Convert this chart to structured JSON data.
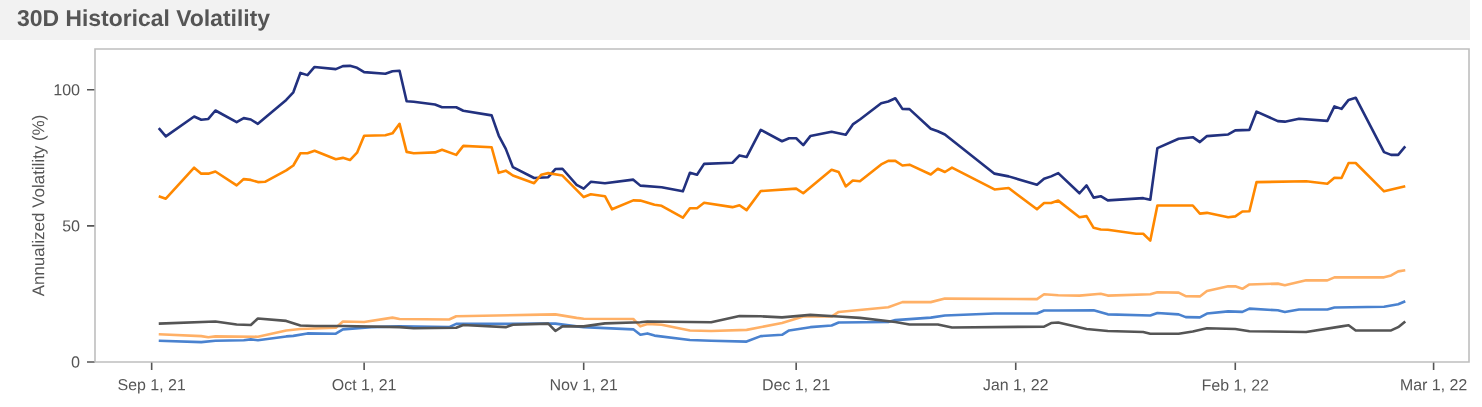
{
  "chart_data": {
    "type": "line",
    "title": "30D Historical Volatility",
    "ylabel": "Annualized Volatility (%)",
    "xlim": [
      "2021-08-24",
      "2022-03-06"
    ],
    "ylim": [
      0,
      115
    ],
    "yticks": [
      0,
      50,
      100
    ],
    "xticks": [
      {
        "value": "2021-09-01",
        "label": "Sep 1, 21"
      },
      {
        "value": "2021-10-01",
        "label": "Oct 1, 21"
      },
      {
        "value": "2021-11-01",
        "label": "Nov 1, 21"
      },
      {
        "value": "2021-12-01",
        "label": "Dec 1, 21"
      },
      {
        "value": "2022-01-01",
        "label": "Jan 1, 22"
      },
      {
        "value": "2022-02-01",
        "label": "Feb 1, 22"
      },
      {
        "value": "2022-03-01",
        "label": "Mar 1, 22"
      }
    ],
    "line_style": "solid",
    "series": [
      {
        "color": "#22317f",
        "x": [
          "2021-09-02",
          "2021-09-03",
          "2021-09-07",
          "2021-09-08",
          "2021-09-09",
          "2021-09-10",
          "2021-09-13",
          "2021-09-14",
          "2021-09-15",
          "2021-09-16",
          "2021-09-20",
          "2021-09-21",
          "2021-09-22",
          "2021-09-23",
          "2021-09-24",
          "2021-09-27",
          "2021-09-28",
          "2021-09-29",
          "2021-09-30",
          "2021-10-01",
          "2021-10-04",
          "2021-10-05",
          "2021-10-06",
          "2021-10-07",
          "2021-10-08",
          "2021-10-11",
          "2021-10-12",
          "2021-10-14",
          "2021-10-15",
          "2021-10-19",
          "2021-10-20",
          "2021-10-21",
          "2021-10-22",
          "2021-10-25",
          "2021-10-27",
          "2021-10-28",
          "2021-10-29",
          "2021-10-31",
          "2021-11-01",
          "2021-11-02",
          "2021-11-04",
          "2021-11-08",
          "2021-11-09",
          "2021-11-12",
          "2021-11-15",
          "2021-11-16",
          "2021-11-17",
          "2021-11-18",
          "2021-11-22",
          "2021-11-23",
          "2021-11-24",
          "2021-11-26",
          "2021-11-29",
          "2021-11-30",
          "2021-12-01",
          "2021-12-02",
          "2021-12-03",
          "2021-12-06",
          "2021-12-08",
          "2021-12-09",
          "2021-12-10",
          "2021-12-13",
          "2021-12-14",
          "2021-12-15",
          "2021-12-16",
          "2021-12-17",
          "2021-12-20",
          "2021-12-21",
          "2021-12-22",
          "2021-12-29",
          "2021-12-31",
          "2022-01-04",
          "2022-01-05",
          "2022-01-06",
          "2022-01-07",
          "2022-01-10",
          "2022-01-11",
          "2022-01-12",
          "2022-01-13",
          "2022-01-14",
          "2022-01-19",
          "2022-01-20",
          "2022-01-21",
          "2022-01-24",
          "2022-01-26",
          "2022-01-27",
          "2022-01-28",
          "2022-01-31",
          "2022-02-01",
          "2022-02-03",
          "2022-02-04",
          "2022-02-07",
          "2022-02-08",
          "2022-02-10",
          "2022-02-14",
          "2022-02-15",
          "2022-02-16",
          "2022-02-17",
          "2022-02-18",
          "2022-02-22",
          "2022-02-23",
          "2022-02-24",
          "2022-02-25"
        ],
        "values": [
          85.9,
          82.9,
          90.2,
          89.0,
          89.3,
          92.4,
          88.1,
          89.6,
          89.1,
          87.5,
          96.3,
          99.1,
          106.2,
          105.4,
          108.4,
          107.6,
          108.7,
          108.8,
          108.1,
          106.5,
          105.9,
          106.8,
          107.0,
          95.8,
          95.6,
          94.6,
          93.6,
          93.6,
          92.3,
          90.6,
          83.2,
          78.3,
          71.6,
          67.6,
          67.9,
          70.9,
          71.0,
          65.1,
          63.7,
          66.2,
          65.7,
          67.0,
          64.8,
          64.2,
          62.7,
          69.5,
          68.8,
          72.8,
          73.2,
          75.9,
          75.3,
          85.3,
          81.1,
          82.2,
          82.2,
          79.7,
          83.0,
          84.6,
          83.5,
          87.3,
          89.1,
          95.1,
          95.7,
          96.9,
          93.0,
          92.9,
          85.7,
          84.8,
          83.6,
          69.2,
          68.2,
          65.1,
          67.3,
          68.2,
          69.4,
          62.0,
          64.9,
          60.4,
          60.9,
          59.4,
          60.2,
          59.6,
          78.6,
          82.0,
          82.6,
          80.8,
          83.0,
          83.6,
          85.1,
          85.3,
          92.0,
          88.5,
          88.3,
          89.4,
          88.6,
          93.9,
          93.0,
          96.3,
          97.1,
          77.1,
          76.1,
          76.1,
          79.2
        ]
      },
      {
        "color": "#ff8800",
        "x": [
          "2021-09-02",
          "2021-09-03",
          "2021-09-07",
          "2021-09-08",
          "2021-09-09",
          "2021-09-10",
          "2021-09-13",
          "2021-09-14",
          "2021-09-15",
          "2021-09-16",
          "2021-09-17",
          "2021-09-20",
          "2021-09-21",
          "2021-09-22",
          "2021-09-23",
          "2021-09-24",
          "2021-09-27",
          "2021-09-28",
          "2021-09-29",
          "2021-09-30",
          "2021-10-01",
          "2021-10-04",
          "2021-10-05",
          "2021-10-06",
          "2021-10-07",
          "2021-10-08",
          "2021-10-11",
          "2021-10-12",
          "2021-10-14",
          "2021-10-15",
          "2021-10-19",
          "2021-10-20",
          "2021-10-21",
          "2021-10-22",
          "2021-10-25",
          "2021-10-26",
          "2021-10-27",
          "2021-10-29",
          "2021-11-01",
          "2021-11-02",
          "2021-11-04",
          "2021-11-05",
          "2021-11-08",
          "2021-11-09",
          "2021-11-11",
          "2021-11-12",
          "2021-11-15",
          "2021-11-16",
          "2021-11-17",
          "2021-11-18",
          "2021-11-22",
          "2021-11-23",
          "2021-11-24",
          "2021-11-26",
          "2021-12-01",
          "2021-12-02",
          "2021-12-06",
          "2021-12-07",
          "2021-12-08",
          "2021-12-09",
          "2021-12-10",
          "2021-12-13",
          "2021-12-14",
          "2021-12-15",
          "2021-12-16",
          "2021-12-17",
          "2021-12-20",
          "2021-12-21",
          "2021-12-22",
          "2021-12-23",
          "2021-12-29",
          "2021-12-31",
          "2022-01-04",
          "2022-01-05",
          "2022-01-06",
          "2022-01-07",
          "2022-01-10",
          "2022-01-11",
          "2022-01-12",
          "2022-01-13",
          "2022-01-14",
          "2022-01-18",
          "2022-01-19",
          "2022-01-20",
          "2022-01-21",
          "2022-01-26",
          "2022-01-27",
          "2022-01-28",
          "2022-01-31",
          "2022-02-01",
          "2022-02-02",
          "2022-02-03",
          "2022-02-04",
          "2022-02-11",
          "2022-02-14",
          "2022-02-15",
          "2022-02-16",
          "2022-02-17",
          "2022-02-18",
          "2022-02-22",
          "2022-02-25"
        ],
        "values": [
          60.9,
          60.0,
          71.4,
          69.2,
          69.2,
          70.0,
          64.9,
          67.2,
          66.9,
          66.1,
          66.2,
          70.4,
          72.2,
          76.7,
          76.7,
          77.6,
          74.5,
          75.0,
          74.2,
          76.9,
          83.1,
          83.3,
          84.0,
          87.5,
          77.2,
          76.7,
          77.0,
          78.0,
          76.1,
          79.4,
          78.9,
          69.5,
          70.3,
          68.5,
          65.7,
          68.8,
          69.4,
          68.5,
          60.6,
          61.6,
          60.9,
          56.1,
          59.4,
          59.3,
          57.8,
          57.4,
          53.0,
          56.5,
          56.5,
          58.5,
          56.9,
          57.6,
          55.8,
          62.8,
          63.7,
          62.0,
          70.6,
          69.8,
          64.5,
          66.7,
          66.4,
          72.6,
          73.9,
          73.9,
          72.2,
          72.5,
          68.9,
          71.0,
          69.8,
          71.4,
          63.4,
          63.9,
          56.1,
          58.4,
          58.4,
          59.3,
          53.2,
          53.6,
          49.3,
          48.7,
          48.6,
          47.1,
          47.1,
          44.6,
          57.5,
          57.5,
          54.5,
          54.8,
          53.2,
          53.5,
          55.3,
          55.4,
          66.1,
          66.4,
          65.5,
          67.7,
          67.6,
          73.1,
          73.1,
          62.7,
          64.6
        ]
      },
      {
        "color": "#ffb066",
        "x": [
          "2021-09-02",
          "2021-09-08",
          "2021-09-09",
          "2021-09-10",
          "2021-09-16",
          "2021-09-20",
          "2021-09-22",
          "2021-09-27",
          "2021-09-28",
          "2021-10-01",
          "2021-10-05",
          "2021-10-06",
          "2021-10-13",
          "2021-10-14",
          "2021-10-26",
          "2021-10-28",
          "2021-10-31",
          "2021-11-01",
          "2021-11-08",
          "2021-11-09",
          "2021-11-10",
          "2021-11-12",
          "2021-11-16",
          "2021-11-19",
          "2021-11-24",
          "2021-11-29",
          "2021-12-02",
          "2021-12-06",
          "2021-12-07",
          "2021-12-14",
          "2021-12-16",
          "2021-12-20",
          "2021-12-22",
          "2022-01-04",
          "2022-01-05",
          "2022-01-07",
          "2022-01-10",
          "2022-01-13",
          "2022-01-14",
          "2022-01-20",
          "2022-01-21",
          "2022-01-24",
          "2022-01-25",
          "2022-01-27",
          "2022-01-28",
          "2022-01-31",
          "2022-02-01",
          "2022-02-02",
          "2022-02-03",
          "2022-02-07",
          "2022-02-08",
          "2022-02-11",
          "2022-02-14",
          "2022-02-15",
          "2022-02-22",
          "2022-02-23",
          "2022-02-24",
          "2022-02-25"
        ],
        "values": [
          10.2,
          9.5,
          9.1,
          9.4,
          9.3,
          11.6,
          12.1,
          12.6,
          14.9,
          14.7,
          16.3,
          15.8,
          15.6,
          16.8,
          17.4,
          17.5,
          16.2,
          15.9,
          15.8,
          13.1,
          14.0,
          13.7,
          11.6,
          11.4,
          11.8,
          14.3,
          16.7,
          16.7,
          18.4,
          20.1,
          22.0,
          22.0,
          23.3,
          23.1,
          24.9,
          24.5,
          24.4,
          25.1,
          24.4,
          24.9,
          25.6,
          25.5,
          24.2,
          24.1,
          26.1,
          27.8,
          27.8,
          26.9,
          28.5,
          28.8,
          28.2,
          30.0,
          30.0,
          31.1,
          31.1,
          31.8,
          33.3,
          33.7
        ]
      },
      {
        "color": "#4a82cf",
        "x": [
          "2021-09-02",
          "2021-09-08",
          "2021-09-10",
          "2021-09-14",
          "2021-09-15",
          "2021-09-16",
          "2021-09-20",
          "2021-09-21",
          "2021-09-23",
          "2021-09-27",
          "2021-09-28",
          "2021-10-02",
          "2021-10-06",
          "2021-10-13",
          "2021-10-14",
          "2021-10-26",
          "2021-10-28",
          "2021-10-31",
          "2021-11-01",
          "2021-11-08",
          "2021-11-09",
          "2021-11-10",
          "2021-11-11",
          "2021-11-16",
          "2021-11-19",
          "2021-11-24",
          "2021-11-26",
          "2021-11-29",
          "2021-11-30",
          "2021-12-03",
          "2021-12-06",
          "2021-12-07",
          "2021-12-14",
          "2021-12-15",
          "2021-12-20",
          "2021-12-22",
          "2021-12-29",
          "2022-01-04",
          "2022-01-05",
          "2022-01-07",
          "2022-01-12",
          "2022-01-14",
          "2022-01-20",
          "2022-01-21",
          "2022-01-24",
          "2022-01-25",
          "2022-01-27",
          "2022-01-28",
          "2022-01-31",
          "2022-02-02",
          "2022-02-03",
          "2022-02-07",
          "2022-02-08",
          "2022-02-10",
          "2022-02-14",
          "2022-02-15",
          "2022-02-22",
          "2022-02-24",
          "2022-02-25"
        ],
        "values": [
          7.8,
          7.3,
          7.8,
          8.0,
          8.3,
          8.0,
          9.4,
          9.6,
          10.5,
          10.4,
          12.0,
          12.8,
          13.1,
          12.8,
          14.0,
          14.1,
          14.1,
          13.1,
          12.8,
          12.0,
          10.0,
          10.5,
          9.7,
          8.1,
          7.8,
          7.5,
          9.5,
          10.0,
          11.6,
          12.8,
          13.4,
          14.5,
          14.7,
          15.4,
          16.3,
          17.1,
          17.8,
          17.8,
          18.9,
          18.9,
          19.0,
          17.5,
          17.1,
          18.0,
          17.5,
          16.5,
          16.4,
          17.8,
          18.6,
          18.4,
          19.6,
          19.0,
          18.4,
          19.3,
          19.3,
          20.0,
          20.3,
          21.2,
          22.3
        ]
      },
      {
        "color": "#555555",
        "x": [
          "2021-09-02",
          "2021-09-10",
          "2021-09-13",
          "2021-09-15",
          "2021-09-16",
          "2021-09-20",
          "2021-09-22",
          "2021-09-24",
          "2021-09-28",
          "2021-10-06",
          "2021-10-08",
          "2021-10-14",
          "2021-10-15",
          "2021-10-21",
          "2021-10-22",
          "2021-10-27",
          "2021-10-28",
          "2021-10-29",
          "2021-11-01",
          "2021-11-04",
          "2021-11-09",
          "2021-11-10",
          "2021-11-19",
          "2021-11-23",
          "2021-11-26",
          "2021-11-29",
          "2021-12-03",
          "2021-12-07",
          "2021-12-10",
          "2021-12-15",
          "2021-12-17",
          "2021-12-21",
          "2021-12-23",
          "2022-01-05",
          "2022-01-06",
          "2022-01-07",
          "2022-01-11",
          "2022-01-14",
          "2022-01-19",
          "2022-01-20",
          "2022-01-24",
          "2022-01-26",
          "2022-01-28",
          "2022-02-01",
          "2022-02-03",
          "2022-02-11",
          "2022-02-16",
          "2022-02-17",
          "2022-02-18",
          "2022-02-23",
          "2022-02-24",
          "2022-02-25"
        ],
        "values": [
          14.1,
          14.9,
          13.8,
          13.6,
          16.0,
          15.1,
          13.4,
          13.2,
          13.2,
          12.8,
          12.4,
          12.6,
          13.6,
          12.8,
          13.7,
          14.1,
          11.4,
          13.1,
          13.1,
          14.2,
          14.6,
          14.9,
          14.6,
          16.9,
          16.8,
          16.4,
          17.3,
          16.7,
          16.2,
          14.7,
          13.8,
          13.8,
          12.7,
          13.0,
          14.3,
          14.5,
          12.1,
          11.4,
          11.0,
          10.4,
          10.4,
          11.2,
          12.4,
          12.1,
          11.3,
          11.0,
          13.1,
          13.5,
          11.6,
          11.6,
          12.8,
          14.9
        ]
      }
    ]
  }
}
